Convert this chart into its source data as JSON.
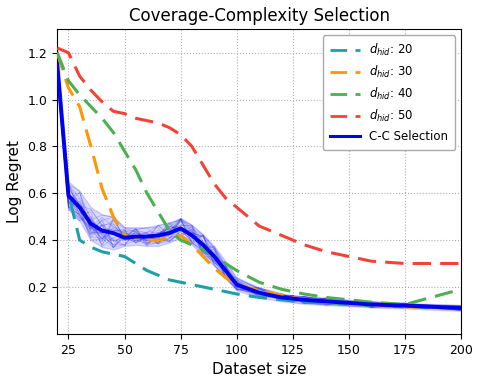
{
  "title": "Coverage-Complexity Selection",
  "xlabel": "Dataset size",
  "ylabel": "Log Regret",
  "x": [
    20,
    25,
    30,
    35,
    40,
    45,
    50,
    55,
    60,
    65,
    70,
    75,
    80,
    85,
    90,
    95,
    100,
    110,
    120,
    125,
    130,
    140,
    150,
    160,
    175,
    200
  ],
  "d20_y": [
    1.15,
    0.6,
    0.4,
    0.37,
    0.35,
    0.34,
    0.33,
    0.3,
    0.27,
    0.25,
    0.23,
    0.22,
    0.21,
    0.2,
    0.19,
    0.18,
    0.17,
    0.155,
    0.145,
    0.14,
    0.135,
    0.13,
    0.125,
    0.12,
    0.115,
    0.11
  ],
  "d30_y": [
    1.2,
    1.05,
    0.97,
    0.8,
    0.62,
    0.5,
    0.42,
    0.41,
    0.4,
    0.4,
    0.41,
    0.42,
    0.38,
    0.33,
    0.28,
    0.24,
    0.21,
    0.185,
    0.165,
    0.155,
    0.145,
    0.135,
    0.128,
    0.12,
    0.115,
    0.11
  ],
  "d40_y": [
    1.2,
    1.08,
    1.02,
    0.97,
    0.92,
    0.86,
    0.78,
    0.7,
    0.6,
    0.52,
    0.44,
    0.4,
    0.38,
    0.36,
    0.33,
    0.3,
    0.27,
    0.22,
    0.19,
    0.18,
    0.17,
    0.155,
    0.145,
    0.135,
    0.125,
    0.19
  ],
  "d50_y": [
    1.22,
    1.2,
    1.1,
    1.04,
    0.99,
    0.95,
    0.94,
    0.92,
    0.91,
    0.9,
    0.88,
    0.85,
    0.8,
    0.72,
    0.64,
    0.58,
    0.54,
    0.46,
    0.42,
    0.4,
    0.38,
    0.35,
    0.33,
    0.31,
    0.3,
    0.3
  ],
  "cc_y": [
    1.15,
    0.59,
    0.54,
    0.47,
    0.44,
    0.43,
    0.41,
    0.415,
    0.415,
    0.42,
    0.43,
    0.45,
    0.42,
    0.38,
    0.33,
    0.27,
    0.21,
    0.175,
    0.155,
    0.15,
    0.145,
    0.138,
    0.132,
    0.125,
    0.12,
    0.11
  ],
  "cc_lower": [
    1.08,
    0.53,
    0.48,
    0.4,
    0.37,
    0.36,
    0.375,
    0.38,
    0.375,
    0.375,
    0.39,
    0.41,
    0.38,
    0.33,
    0.29,
    0.235,
    0.185,
    0.155,
    0.138,
    0.133,
    0.128,
    0.122,
    0.118,
    0.112,
    0.108,
    0.098
  ],
  "cc_upper": [
    1.22,
    0.65,
    0.61,
    0.54,
    0.51,
    0.5,
    0.455,
    0.455,
    0.455,
    0.465,
    0.475,
    0.495,
    0.465,
    0.425,
    0.375,
    0.31,
    0.24,
    0.198,
    0.172,
    0.165,
    0.16,
    0.154,
    0.146,
    0.138,
    0.132,
    0.122
  ],
  "color_d20": "#1f9fa8",
  "color_d30": "#FF9800",
  "color_d40": "#4CAF50",
  "color_d50": "#F44336",
  "color_cc": "#0000EE",
  "ylim": [
    0.0,
    1.3
  ],
  "xlim": [
    20,
    200
  ],
  "xticks": [
    25,
    50,
    75,
    100,
    125,
    150,
    175,
    200
  ],
  "yticks": [
    0.2,
    0.4,
    0.6,
    0.8,
    1.0,
    1.2
  ]
}
